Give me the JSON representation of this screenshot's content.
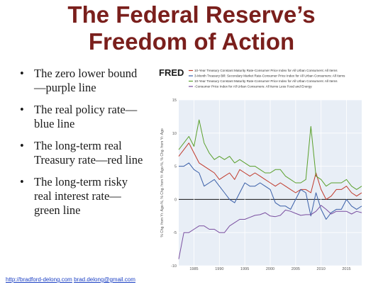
{
  "slide": {
    "title_line1": "The Federal Reserve’s",
    "title_line2": "Freedom of Action",
    "bullets": [
      {
        "line1": "The zero lower bound",
        "line2": "—purple line"
      },
      {
        "line1": "The real policy rate—",
        "line2": "blue line"
      },
      {
        "line1": "The long-term real",
        "line2": "Treasury rate—red line"
      },
      {
        "line1": "The long-term risky",
        "line2": "real interest rate—",
        "line3": "green line"
      }
    ],
    "bullet_glyph": "•",
    "footer_link1": "http://bradford-delong.com",
    "footer_link2": "brad.delong@gmail.com"
  },
  "chart_data": {
    "type": "line",
    "source_logo": "FRED",
    "ylabel": "% Chg. from Yr. Ago-%, % Chg. from Yr. Ago-%, % Chg. from Yr. Ago",
    "xlim": [
      1982,
      2018
    ],
    "ylim": [
      -10,
      15
    ],
    "yticks": [
      -10,
      -5,
      0,
      5,
      10,
      15
    ],
    "xticks": [
      1985,
      1990,
      1995,
      2000,
      2005,
      2010,
      2015
    ],
    "zero_line": true,
    "grid": true,
    "series": [
      {
        "name": "10-Year Treasury Constant Maturity Rate-Consumer Price Index for All Urban Consumers: All Items",
        "color": "#c0392b",
        "x": [
          1982,
          1983,
          1984,
          1985,
          1986,
          1987,
          1988,
          1989,
          1990,
          1991,
          1992,
          1993,
          1994,
          1995,
          1996,
          1997,
          1998,
          1999,
          2000,
          2001,
          2002,
          2003,
          2004,
          2005,
          2006,
          2007,
          2008,
          2009,
          2010,
          2011,
          2012,
          2013,
          2014,
          2015,
          2016,
          2017,
          2018
        ],
        "values": [
          6.5,
          7.5,
          8.5,
          7.0,
          5.5,
          5.0,
          4.5,
          4.0,
          3.0,
          3.5,
          4.0,
          3.0,
          4.5,
          4.0,
          3.5,
          4.0,
          3.5,
          3.0,
          2.5,
          2.0,
          2.5,
          2.0,
          1.5,
          1.0,
          1.5,
          1.5,
          1.0,
          4.0,
          1.5,
          0.0,
          0.5,
          1.5,
          1.5,
          2.0,
          1.0,
          0.5,
          1.0
        ]
      },
      {
        "name": "3-Month Treasury Bill: Secondary Market Rate-Consumer Price Index for All Urban Consumers: All Items",
        "color": "#3a5fa8",
        "x": [
          1982,
          1983,
          1984,
          1985,
          1986,
          1987,
          1988,
          1989,
          1990,
          1991,
          1992,
          1993,
          1994,
          1995,
          1996,
          1997,
          1998,
          1999,
          2000,
          2001,
          2002,
          2003,
          2004,
          2005,
          2006,
          2007,
          2008,
          2009,
          2010,
          2011,
          2012,
          2013,
          2014,
          2015,
          2016,
          2017,
          2018
        ],
        "values": [
          5.0,
          5.0,
          5.5,
          4.5,
          4.0,
          2.0,
          2.5,
          3.0,
          2.0,
          1.0,
          0.0,
          -0.5,
          1.0,
          2.5,
          2.0,
          2.0,
          2.5,
          2.0,
          1.5,
          -0.5,
          -1.0,
          -1.0,
          -1.5,
          0.0,
          1.5,
          1.0,
          -2.5,
          1.0,
          -1.5,
          -3.0,
          -2.0,
          -1.5,
          -1.5,
          0.0,
          -1.0,
          -1.5,
          -1.0
        ]
      },
      {
        "name": "10-Year Treasury Constant Maturity Rate-Consumer Price Index for All Urban Consumers: All Items",
        "color": "#5aa02c",
        "x": [
          1982,
          1983,
          1984,
          1985,
          1986,
          1987,
          1988,
          1989,
          1990,
          1991,
          1992,
          1993,
          1994,
          1995,
          1996,
          1997,
          1998,
          1999,
          2000,
          2001,
          2002,
          2003,
          2004,
          2005,
          2006,
          2007,
          2008,
          2009,
          2010,
          2011,
          2012,
          2013,
          2014,
          2015,
          2016,
          2017,
          2018
        ],
        "values": [
          7.5,
          8.5,
          9.5,
          8.0,
          12.0,
          8.5,
          7.0,
          6.0,
          6.5,
          6.0,
          6.5,
          5.5,
          6.0,
          5.5,
          5.0,
          5.0,
          4.5,
          4.0,
          4.0,
          4.5,
          4.5,
          3.5,
          3.0,
          2.5,
          2.5,
          3.0,
          11.0,
          3.5,
          3.0,
          2.0,
          2.5,
          2.5,
          2.5,
          3.0,
          2.0,
          1.5,
          2.0
        ]
      },
      {
        "name": "-Consumer Price Index for All Urban Consumers: All Items Less Food and Energy",
        "color": "#7a4fa0",
        "x": [
          1982,
          1983,
          1984,
          1985,
          1986,
          1987,
          1988,
          1989,
          1990,
          1991,
          1992,
          1993,
          1994,
          1995,
          1996,
          1997,
          1998,
          1999,
          2000,
          2001,
          2002,
          2003,
          2004,
          2005,
          2006,
          2007,
          2008,
          2009,
          2010,
          2011,
          2012,
          2013,
          2014,
          2015,
          2016,
          2017,
          2018
        ],
        "values": [
          -9.0,
          -5.0,
          -5.0,
          -4.5,
          -4.0,
          -4.0,
          -4.5,
          -4.5,
          -5.0,
          -5.0,
          -4.0,
          -3.5,
          -3.0,
          -3.0,
          -2.7,
          -2.4,
          -2.3,
          -2.0,
          -2.5,
          -2.6,
          -2.4,
          -1.6,
          -1.8,
          -2.1,
          -2.4,
          -2.3,
          -2.3,
          -1.8,
          -0.9,
          -1.5,
          -2.2,
          -1.8,
          -1.8,
          -1.8,
          -2.2,
          -1.8,
          -2.0
        ]
      }
    ],
    "legend_prefix": "—"
  }
}
